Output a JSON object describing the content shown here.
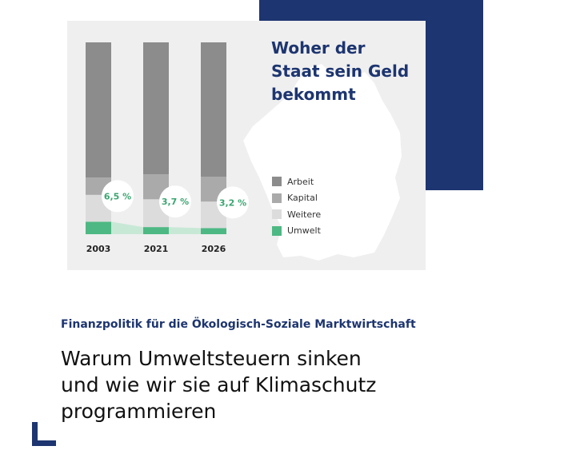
{
  "chart_data": {
    "type": "bar",
    "stacked": true,
    "title_lines": [
      "Woher der",
      "Staat sein Geld",
      "bekommt"
    ],
    "categories": [
      "2003",
      "2021",
      "2026"
    ],
    "series": [
      {
        "name": "Umwelt",
        "values": [
          6.5,
          3.7,
          3.2
        ],
        "color": "#4db883"
      },
      {
        "name": "Weitere",
        "values": [
          14.0,
          14.5,
          13.8
        ],
        "color": "#dcdcdc"
      },
      {
        "name": "Kapital",
        "values": [
          9.0,
          13.0,
          13.0
        ],
        "color": "#aaaaaa"
      },
      {
        "name": "Arbeit",
        "values": [
          70.5,
          68.8,
          70.0
        ],
        "color": "#8c8c8c"
      }
    ],
    "legend_order": [
      "Arbeit",
      "Kapital",
      "Weitere",
      "Umwelt"
    ],
    "data_labels": [
      "6,5 %",
      "3,7 %",
      "3,2 %"
    ],
    "ylim": [
      0,
      100
    ],
    "legend_position": "right",
    "grid": false
  },
  "subtitle": "Finanzpolitik für die Ökologisch-Soziale Marktwirtschaft",
  "headline_lines": [
    "Warum Umweltsteuern sinken",
    "und wie wir sie auf Klimaschutz",
    "programmieren"
  ],
  "colors": {
    "navy": "#1d3570",
    "card_background": "#efefef",
    "map_fill": "#ffffff",
    "umwelt_light": "#c8e8d6"
  }
}
